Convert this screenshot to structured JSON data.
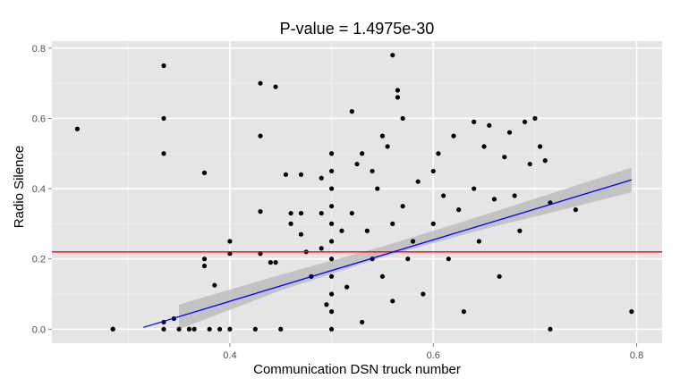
{
  "chart_data": {
    "type": "scatter",
    "title": "P-value = 1.4975e-30",
    "xlabel": "Communication DSN truck number",
    "ylabel": "Radio Silence",
    "xlim": [
      0.225,
      0.825
    ],
    "ylim": [
      -0.04,
      0.82
    ],
    "x_ticks": [
      0.4,
      0.6,
      0.8
    ],
    "x_tick_labels": [
      "0.4",
      "0.6",
      "0.8"
    ],
    "y_ticks": [
      0.0,
      0.2,
      0.4,
      0.6,
      0.8
    ],
    "y_tick_labels": [
      "0.0",
      "0.2",
      "0.4",
      "0.6",
      "0.8"
    ],
    "grid": true,
    "colors": {
      "panel": "#e5e5e5",
      "grid_major": "#ffffff",
      "points": "#000000",
      "regression_line": "#0000ff",
      "confidence_band": "#bdbdbd",
      "reference_line": "#ff0000"
    },
    "reference_line": {
      "y": 0.22
    },
    "regression": {
      "x": [
        0.315,
        0.795
      ],
      "y": [
        0.005,
        0.425
      ],
      "band": [
        {
          "x": 0.35,
          "lo": 0.0,
          "hi": 0.07
        },
        {
          "x": 0.45,
          "lo": 0.11,
          "hi": 0.155
        },
        {
          "x": 0.55,
          "lo": 0.205,
          "hi": 0.235
        },
        {
          "x": 0.65,
          "lo": 0.285,
          "hi": 0.325
        },
        {
          "x": 0.72,
          "lo": 0.335,
          "hi": 0.39
        },
        {
          "x": 0.795,
          "lo": 0.39,
          "hi": 0.46
        }
      ]
    },
    "points": [
      [
        0.25,
        0.57
      ],
      [
        0.285,
        0.0
      ],
      [
        0.285,
        0.0
      ],
      [
        0.335,
        0.75
      ],
      [
        0.335,
        0.6
      ],
      [
        0.335,
        0.5
      ],
      [
        0.335,
        0.02
      ],
      [
        0.335,
        0.0
      ],
      [
        0.345,
        0.03
      ],
      [
        0.35,
        0.0
      ],
      [
        0.36,
        0.0
      ],
      [
        0.365,
        0.0
      ],
      [
        0.375,
        0.445
      ],
      [
        0.375,
        0.2
      ],
      [
        0.375,
        0.18
      ],
      [
        0.38,
        0.0
      ],
      [
        0.385,
        0.125
      ],
      [
        0.39,
        0.0
      ],
      [
        0.4,
        0.25
      ],
      [
        0.4,
        0.215
      ],
      [
        0.4,
        0.0
      ],
      [
        0.425,
        0.0
      ],
      [
        0.43,
        0.7
      ],
      [
        0.43,
        0.55
      ],
      [
        0.43,
        0.335
      ],
      [
        0.43,
        0.215
      ],
      [
        0.44,
        0.19
      ],
      [
        0.445,
        0.69
      ],
      [
        0.445,
        0.19
      ],
      [
        0.45,
        0.0
      ],
      [
        0.455,
        0.44
      ],
      [
        0.46,
        0.33
      ],
      [
        0.46,
        0.3
      ],
      [
        0.47,
        0.44
      ],
      [
        0.47,
        0.33
      ],
      [
        0.47,
        0.27
      ],
      [
        0.475,
        0.22
      ],
      [
        0.48,
        0.15
      ],
      [
        0.49,
        0.43
      ],
      [
        0.49,
        0.33
      ],
      [
        0.49,
        0.23
      ],
      [
        0.495,
        0.07
      ],
      [
        0.5,
        0.5
      ],
      [
        0.5,
        0.45
      ],
      [
        0.5,
        0.4
      ],
      [
        0.5,
        0.35
      ],
      [
        0.5,
        0.3
      ],
      [
        0.5,
        0.25
      ],
      [
        0.5,
        0.2
      ],
      [
        0.5,
        0.15
      ],
      [
        0.5,
        0.1
      ],
      [
        0.5,
        0.05
      ],
      [
        0.5,
        0.0
      ],
      [
        0.51,
        0.28
      ],
      [
        0.515,
        0.12
      ],
      [
        0.52,
        0.62
      ],
      [
        0.52,
        0.33
      ],
      [
        0.525,
        0.47
      ],
      [
        0.53,
        0.5
      ],
      [
        0.53,
        0.02
      ],
      [
        0.535,
        0.28
      ],
      [
        0.54,
        0.45
      ],
      [
        0.54,
        0.2
      ],
      [
        0.545,
        0.4
      ],
      [
        0.55,
        0.55
      ],
      [
        0.55,
        0.15
      ],
      [
        0.555,
        0.52
      ],
      [
        0.56,
        0.78
      ],
      [
        0.56,
        0.3
      ],
      [
        0.56,
        0.08
      ],
      [
        0.565,
        0.68
      ],
      [
        0.565,
        0.66
      ],
      [
        0.57,
        0.6
      ],
      [
        0.57,
        0.35
      ],
      [
        0.575,
        0.2
      ],
      [
        0.58,
        0.25
      ],
      [
        0.585,
        0.42
      ],
      [
        0.59,
        0.1
      ],
      [
        0.6,
        0.45
      ],
      [
        0.6,
        0.3
      ],
      [
        0.605,
        0.5
      ],
      [
        0.61,
        0.38
      ],
      [
        0.615,
        0.2
      ],
      [
        0.62,
        0.55
      ],
      [
        0.625,
        0.34
      ],
      [
        0.63,
        0.05
      ],
      [
        0.64,
        0.59
      ],
      [
        0.64,
        0.4
      ],
      [
        0.645,
        0.25
      ],
      [
        0.65,
        0.52
      ],
      [
        0.655,
        0.58
      ],
      [
        0.66,
        0.37
      ],
      [
        0.665,
        0.15
      ],
      [
        0.67,
        0.49
      ],
      [
        0.675,
        0.56
      ],
      [
        0.68,
        0.38
      ],
      [
        0.685,
        0.28
      ],
      [
        0.69,
        0.59
      ],
      [
        0.695,
        0.47
      ],
      [
        0.7,
        0.6
      ],
      [
        0.705,
        0.52
      ],
      [
        0.71,
        0.48
      ],
      [
        0.715,
        0.36
      ],
      [
        0.715,
        0.0
      ],
      [
        0.74,
        0.34
      ],
      [
        0.795,
        0.05
      ]
    ]
  }
}
